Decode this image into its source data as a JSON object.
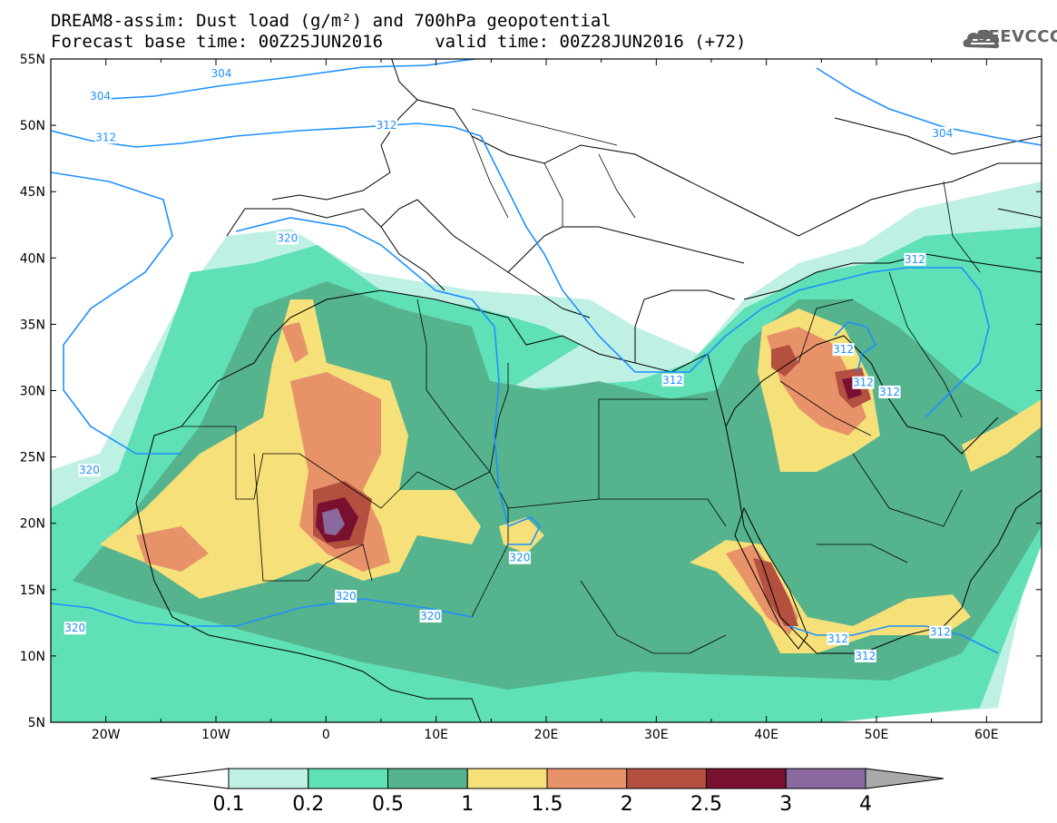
{
  "title": {
    "line1": "DREAM8-assim: Dust load (g/m²) and 700hPa geopotential",
    "line2": "Forecast base time: 00Z25JUN2016     valid time: 00Z28JUN2016 (+72)"
  },
  "logo": {
    "text": "SEEVCCC",
    "icon": "cloud-logo-icon"
  },
  "map": {
    "lon_range": [
      -25,
      65
    ],
    "lat_range": [
      5,
      55
    ],
    "lat_labels": [
      "55N",
      "50N",
      "45N",
      "40N",
      "35N",
      "30N",
      "25N",
      "20N",
      "15N",
      "10N",
      "5N"
    ],
    "lon_labels": [
      "20W",
      "10W",
      "0",
      "10E",
      "20E",
      "30E",
      "40E",
      "50E",
      "60E"
    ],
    "contour_labels": [
      {
        "text": "304",
        "lon": -9.5,
        "lat": 53.9
      },
      {
        "text": "304",
        "lon": -20.5,
        "lat": 52.2
      },
      {
        "text": "304",
        "lon": 56.0,
        "lat": 49.4
      },
      {
        "text": "312",
        "lon": -20.0,
        "lat": 49.1
      },
      {
        "text": "312",
        "lon": 5.5,
        "lat": 50.0
      },
      {
        "text": "312",
        "lon": 31.5,
        "lat": 30.8
      },
      {
        "text": "312",
        "lon": 47.0,
        "lat": 33.1
      },
      {
        "text": "312",
        "lon": 48.8,
        "lat": 30.6
      },
      {
        "text": "312",
        "lon": 51.2,
        "lat": 29.9
      },
      {
        "text": "312",
        "lon": 53.5,
        "lat": 39.9
      },
      {
        "text": "312",
        "lon": 46.5,
        "lat": 11.3
      },
      {
        "text": "312",
        "lon": 49.0,
        "lat": 10.0
      },
      {
        "text": "312",
        "lon": 55.8,
        "lat": 11.8
      },
      {
        "text": "320",
        "lon": -3.5,
        "lat": 41.5
      },
      {
        "text": "320",
        "lon": -21.5,
        "lat": 24.0
      },
      {
        "text": "320",
        "lon": 17.6,
        "lat": 17.4
      },
      {
        "text": "320",
        "lon": 1.8,
        "lat": 14.5
      },
      {
        "text": "320",
        "lon": 9.5,
        "lat": 13.0
      },
      {
        "text": "320",
        "lon": -22.8,
        "lat": 12.1
      }
    ]
  },
  "colorbar": {
    "labels": [
      "0.1",
      "0.2",
      "0.5",
      "1",
      "1.5",
      "2",
      "2.5",
      "3",
      "4"
    ],
    "colors": [
      "#ffffff",
      "#bff0e4",
      "#5fe0b6",
      "#55b38e",
      "#f5e07a",
      "#e8926a",
      "#b35040",
      "#7a1030",
      "#8a6a9e",
      "#a9a9a9"
    ]
  }
}
